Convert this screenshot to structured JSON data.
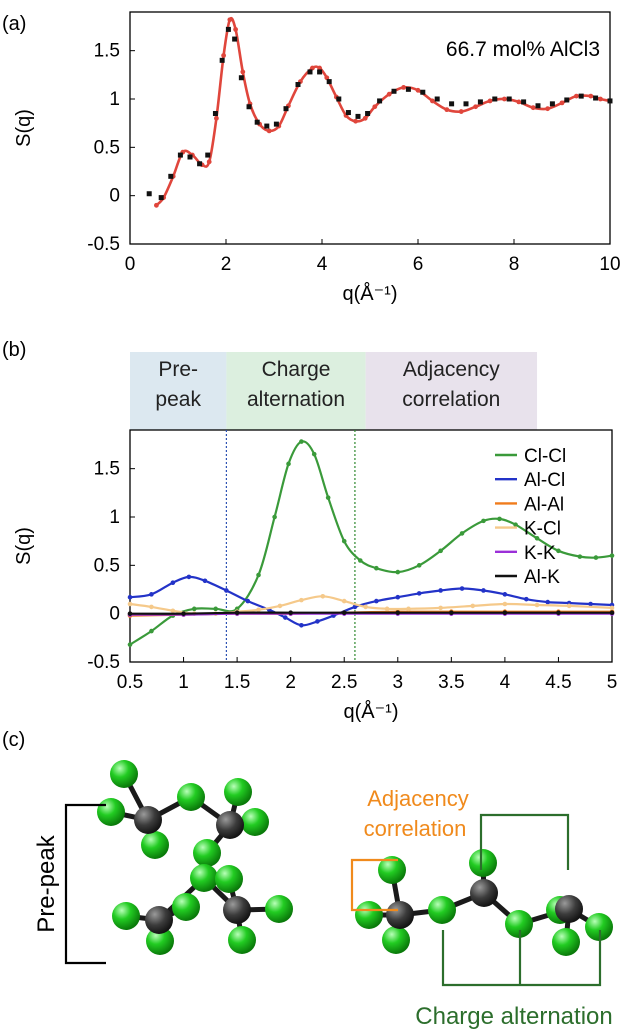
{
  "panel_labels": {
    "a": "(a)",
    "b": "(b)",
    "c": "(c)"
  },
  "panel_c_labels": {
    "pre_peak": "Pre-peak",
    "adjacency_line1": "Adjacency",
    "adjacency_line2": "correlation",
    "charge_alternation": "Charge alternation"
  },
  "colors": {
    "chlorine": "#22c322",
    "aluminum": "#3a3a3a",
    "adjacency": "#f08a1c",
    "charge": "#2c6e2c"
  },
  "chart_data": [
    {
      "type": "line",
      "annotation": "66.7 mol% AlCl3",
      "xlabel": "q(Å⁻¹)",
      "ylabel": "S(q)",
      "xlim": [
        0,
        10
      ],
      "ylim": [
        -0.5,
        1.9
      ],
      "xticks": [
        0,
        2,
        4,
        6,
        8,
        10
      ],
      "xtick_labels": [
        "0",
        "2",
        "4",
        "6",
        "8",
        "10"
      ],
      "yticks": [
        -0.5,
        0,
        0.5,
        1,
        1.5
      ],
      "ytick_labels": [
        "-0.5",
        "0",
        "0.5",
        "1",
        "1.5"
      ],
      "series": [
        {
          "style": "line",
          "color": "#e0463c",
          "points": [
            [
              0.55,
              -0.1
            ],
            [
              0.7,
              -0.02
            ],
            [
              0.9,
              0.2
            ],
            [
              1.1,
              0.45
            ],
            [
              1.3,
              0.42
            ],
            [
              1.5,
              0.32
            ],
            [
              1.65,
              0.35
            ],
            [
              1.8,
              0.8
            ],
            [
              1.95,
              1.45
            ],
            [
              2.08,
              1.82
            ],
            [
              2.2,
              1.72
            ],
            [
              2.35,
              1.28
            ],
            [
              2.5,
              0.95
            ],
            [
              2.7,
              0.74
            ],
            [
              2.9,
              0.67
            ],
            [
              3.1,
              0.72
            ],
            [
              3.3,
              0.93
            ],
            [
              3.55,
              1.18
            ],
            [
              3.8,
              1.32
            ],
            [
              3.95,
              1.32
            ],
            [
              4.1,
              1.22
            ],
            [
              4.3,
              1.02
            ],
            [
              4.5,
              0.83
            ],
            [
              4.7,
              0.77
            ],
            [
              4.9,
              0.8
            ],
            [
              5.1,
              0.92
            ],
            [
              5.4,
              1.05
            ],
            [
              5.7,
              1.12
            ],
            [
              6.0,
              1.09
            ],
            [
              6.3,
              0.98
            ],
            [
              6.6,
              0.89
            ],
            [
              6.9,
              0.87
            ],
            [
              7.2,
              0.92
            ],
            [
              7.5,
              0.98
            ],
            [
              7.8,
              1.0
            ],
            [
              8.1,
              0.97
            ],
            [
              8.4,
              0.91
            ],
            [
              8.7,
              0.9
            ],
            [
              9.0,
              0.96
            ],
            [
              9.3,
              1.03
            ],
            [
              9.6,
              1.03
            ],
            [
              9.8,
              1.0
            ],
            [
              10.0,
              0.98
            ]
          ]
        },
        {
          "style": "dots",
          "color": "#111111",
          "points": [
            [
              0.4,
              0.02
            ],
            [
              0.65,
              -0.02
            ],
            [
              0.85,
              0.2
            ],
            [
              1.05,
              0.42
            ],
            [
              1.25,
              0.4
            ],
            [
              1.45,
              0.33
            ],
            [
              1.62,
              0.42
            ],
            [
              1.78,
              0.85
            ],
            [
              1.92,
              1.4
            ],
            [
              2.05,
              1.72
            ],
            [
              2.18,
              1.62
            ],
            [
              2.32,
              1.22
            ],
            [
              2.48,
              0.92
            ],
            [
              2.65,
              0.76
            ],
            [
              2.85,
              0.72
            ],
            [
              3.05,
              0.74
            ],
            [
              3.25,
              0.9
            ],
            [
              3.5,
              1.15
            ],
            [
              3.75,
              1.28
            ],
            [
              3.95,
              1.28
            ],
            [
              4.15,
              1.18
            ],
            [
              4.35,
              1.0
            ],
            [
              4.55,
              0.86
            ],
            [
              4.75,
              0.82
            ],
            [
              4.95,
              0.85
            ],
            [
              5.2,
              0.98
            ],
            [
              5.5,
              1.08
            ],
            [
              5.8,
              1.1
            ],
            [
              6.1,
              1.07
            ],
            [
              6.4,
              1.0
            ],
            [
              6.7,
              0.95
            ],
            [
              7.0,
              0.95
            ],
            [
              7.3,
              0.97
            ],
            [
              7.6,
              1.0
            ],
            [
              7.9,
              1.0
            ],
            [
              8.2,
              0.97
            ],
            [
              8.5,
              0.93
            ],
            [
              8.8,
              0.95
            ],
            [
              9.1,
              0.99
            ],
            [
              9.4,
              1.03
            ],
            [
              9.7,
              1.01
            ],
            [
              10.0,
              0.98
            ]
          ]
        }
      ]
    },
    {
      "type": "line",
      "xlabel": "q(Å⁻¹)",
      "ylabel": "S(q)",
      "xlim": [
        0.5,
        5
      ],
      "ylim": [
        -0.5,
        1.9
      ],
      "xticks": [
        0.5,
        1,
        1.5,
        2,
        2.5,
        3,
        3.5,
        4,
        4.5,
        5
      ],
      "xtick_labels": [
        "0.5",
        "1",
        "1.5",
        "2",
        "2.5",
        "3",
        "3.5",
        "4",
        "4.5",
        "5"
      ],
      "yticks": [
        -0.5,
        0,
        0.5,
        1,
        1.5
      ],
      "ytick_labels": [
        "-0.5",
        "0",
        "0.5",
        "1",
        "1.5"
      ],
      "legend_position": "top-right",
      "regions": [
        {
          "label_lines": [
            "Pre-",
            "peak"
          ],
          "from": 0.5,
          "to": 1.4,
          "color": "#dce8f0"
        },
        {
          "label_lines": [
            "Charge",
            "alternation"
          ],
          "from": 1.4,
          "to": 2.7,
          "color": "#dcefdf"
        },
        {
          "label_lines": [
            "Adjacency",
            "correlation"
          ],
          "from": 2.7,
          "to": 4.3,
          "color": "#e8e2ec"
        }
      ],
      "vlines": [
        {
          "x": 1.4,
          "color": "#2e53b3"
        },
        {
          "x": 2.6,
          "color": "#2e8a2e"
        }
      ],
      "series": [
        {
          "name": "Cl-Cl",
          "color": "#3a9a3a",
          "points": [
            [
              0.5,
              -0.32
            ],
            [
              0.7,
              -0.18
            ],
            [
              0.9,
              -0.02
            ],
            [
              1.1,
              0.05
            ],
            [
              1.3,
              0.05
            ],
            [
              1.5,
              0.05
            ],
            [
              1.7,
              0.4
            ],
            [
              1.85,
              1.0
            ],
            [
              1.98,
              1.55
            ],
            [
              2.1,
              1.78
            ],
            [
              2.22,
              1.65
            ],
            [
              2.35,
              1.2
            ],
            [
              2.5,
              0.75
            ],
            [
              2.65,
              0.55
            ],
            [
              2.8,
              0.47
            ],
            [
              3.0,
              0.43
            ],
            [
              3.2,
              0.5
            ],
            [
              3.4,
              0.65
            ],
            [
              3.6,
              0.83
            ],
            [
              3.8,
              0.96
            ],
            [
              3.95,
              0.98
            ],
            [
              4.1,
              0.92
            ],
            [
              4.3,
              0.78
            ],
            [
              4.5,
              0.65
            ],
            [
              4.7,
              0.59
            ],
            [
              4.85,
              0.58
            ],
            [
              5.0,
              0.6
            ]
          ]
        },
        {
          "name": "Al-Cl",
          "color": "#2333c8",
          "points": [
            [
              0.5,
              0.17
            ],
            [
              0.7,
              0.2
            ],
            [
              0.9,
              0.32
            ],
            [
              1.05,
              0.38
            ],
            [
              1.2,
              0.34
            ],
            [
              1.4,
              0.24
            ],
            [
              1.6,
              0.13
            ],
            [
              1.8,
              0.04
            ],
            [
              1.95,
              -0.04
            ],
            [
              2.1,
              -0.12
            ],
            [
              2.25,
              -0.08
            ],
            [
              2.4,
              -0.02
            ],
            [
              2.6,
              0.07
            ],
            [
              2.8,
              0.13
            ],
            [
              3.0,
              0.17
            ],
            [
              3.2,
              0.21
            ],
            [
              3.4,
              0.24
            ],
            [
              3.6,
              0.26
            ],
            [
              3.8,
              0.24
            ],
            [
              4.0,
              0.2
            ],
            [
              4.2,
              0.15
            ],
            [
              4.4,
              0.12
            ],
            [
              4.6,
              0.11
            ],
            [
              4.8,
              0.1
            ],
            [
              5.0,
              0.09
            ]
          ]
        },
        {
          "name": "Al-Al",
          "color": "#f07c1c",
          "points": [
            [
              0.5,
              -0.02
            ],
            [
              1.0,
              -0.01
            ],
            [
              1.5,
              0.0
            ],
            [
              2.0,
              0.0
            ],
            [
              2.5,
              0.01
            ],
            [
              3.0,
              0.02
            ],
            [
              3.5,
              0.02
            ],
            [
              4.0,
              0.02
            ],
            [
              4.5,
              0.02
            ],
            [
              5.0,
              0.02
            ]
          ]
        },
        {
          "name": "K-Cl",
          "color": "#f5c98a",
          "points": [
            [
              0.5,
              0.1
            ],
            [
              0.7,
              0.07
            ],
            [
              0.9,
              0.03
            ],
            [
              1.1,
              0.0
            ],
            [
              1.3,
              0.0
            ],
            [
              1.5,
              0.02
            ],
            [
              1.7,
              0.04
            ],
            [
              1.9,
              0.08
            ],
            [
              2.1,
              0.14
            ],
            [
              2.3,
              0.18
            ],
            [
              2.5,
              0.13
            ],
            [
              2.7,
              0.07
            ],
            [
              2.9,
              0.05
            ],
            [
              3.1,
              0.05
            ],
            [
              3.4,
              0.06
            ],
            [
              3.7,
              0.08
            ],
            [
              4.0,
              0.1
            ],
            [
              4.3,
              0.09
            ],
            [
              4.6,
              0.08
            ],
            [
              5.0,
              0.06
            ]
          ]
        },
        {
          "name": "K-K",
          "color": "#9b30d8",
          "points": [
            [
              0.5,
              -0.01
            ],
            [
              1.0,
              -0.01
            ],
            [
              1.5,
              0.0
            ],
            [
              2.0,
              0.0
            ],
            [
              2.5,
              0.0
            ],
            [
              3.0,
              0.0
            ],
            [
              3.5,
              0.0
            ],
            [
              4.0,
              0.0
            ],
            [
              4.5,
              0.0
            ],
            [
              5.0,
              0.0
            ]
          ]
        },
        {
          "name": "Al-K",
          "color": "#111111",
          "points": [
            [
              0.5,
              0.0
            ],
            [
              1.0,
              0.0
            ],
            [
              1.5,
              0.01
            ],
            [
              2.0,
              0.01
            ],
            [
              2.5,
              0.01
            ],
            [
              3.0,
              0.01
            ],
            [
              3.5,
              0.01
            ],
            [
              4.0,
              0.01
            ],
            [
              4.5,
              0.01
            ],
            [
              5.0,
              0.01
            ]
          ]
        }
      ]
    }
  ]
}
